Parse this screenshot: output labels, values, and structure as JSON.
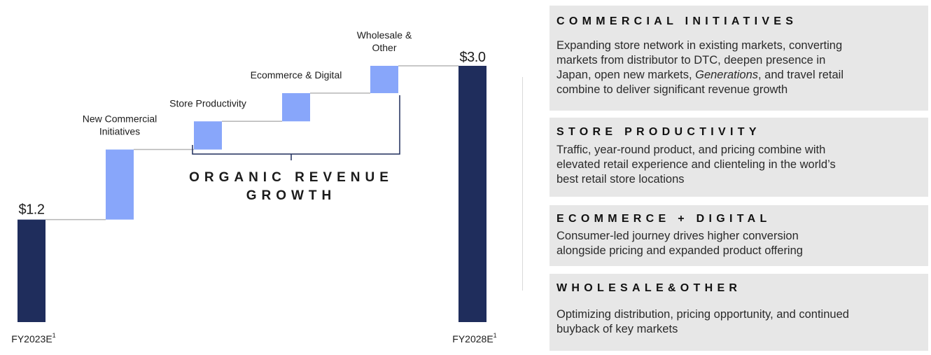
{
  "chart_data": {
    "type": "waterfall",
    "unit": "$",
    "start": {
      "label": "FY2023E",
      "superscript": "1",
      "value": 1.2,
      "value_label": "$1.2"
    },
    "end": {
      "label": "FY2028E",
      "superscript": "1",
      "value": 3.0,
      "value_label": "$3.0"
    },
    "steps": [
      {
        "label_lines": [
          "New Commercial",
          "Initiatives"
        ],
        "value": 0.82
      },
      {
        "label_lines": [
          "Store Productivity"
        ],
        "value": 0.33
      },
      {
        "label_lines": [
          "Ecommerce & Digital"
        ],
        "value": 0.33
      },
      {
        "label_lines": [
          "Wholesale &",
          "Other"
        ],
        "value": 0.32
      }
    ],
    "bracket_label_lines": [
      "ORGANIC REVENUE",
      "GROWTH"
    ],
    "ylim": [
      0,
      3.0
    ],
    "colors": {
      "total_bar": "#1f2d5c",
      "step_bar": "#88a6fa",
      "connector": "#b5b5b5",
      "bracket": "#1f2d5c"
    }
  },
  "panels": [
    {
      "title": "COMMERCIAL INITIATIVES",
      "lines": [
        [
          "Expanding store network in existing markets, converting"
        ],
        [
          "markets from distributor to DTC, deepen presence in"
        ],
        [
          "Japan, open new markets, ",
          {
            "em": "Generations"
          },
          ", and travel retail"
        ],
        [
          "combine to deliver significant revenue growth"
        ]
      ]
    },
    {
      "title": "STORE PRODUCTIVITY",
      "lines": [
        [
          "Traffic, year-round product, and pricing combine with"
        ],
        [
          "elevated retail experience and clienteling in the world’s"
        ],
        [
          "best retail store locations"
        ]
      ]
    },
    {
      "title": "ECOMMERCE + DIGITAL",
      "lines": [
        [
          "Consumer-led journey drives higher conversion"
        ],
        [
          "alongside pricing and expanded product offering"
        ]
      ]
    },
    {
      "title": "WHOLESALE&OTHER",
      "lines": [
        [
          "Optimizing distribution, pricing opportunity, and continued"
        ],
        [
          "buyback of key markets"
        ]
      ]
    }
  ],
  "colors": {
    "panel_background": "#e7e7e7",
    "text": "#1b1b1b"
  }
}
